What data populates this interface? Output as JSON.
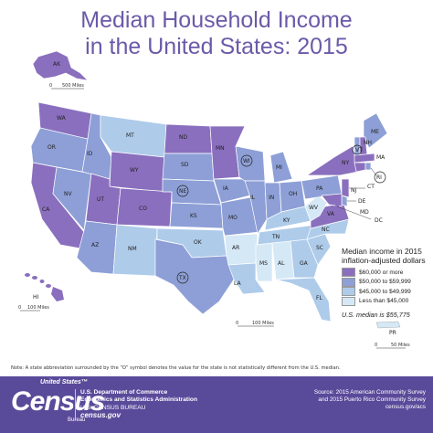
{
  "title": {
    "line1": "Median Household Income",
    "line2": "in the United States: 2015"
  },
  "legend": {
    "title_line1": "Median income in 2015",
    "title_line2": "inflation-adjusted dollars",
    "items": [
      {
        "label": "$60,000 or more",
        "color": "#8a6fbe"
      },
      {
        "label": "$50,000 to $59,999",
        "color": "#8d9fd6"
      },
      {
        "label": "$45,000 to $49,999",
        "color": "#aecbea"
      },
      {
        "label": "Less than $45,000",
        "color": "#d5e8f5"
      }
    ],
    "median": "U.S. median is $55,775"
  },
  "colors": {
    "tier1": "#8a6fbe",
    "tier2": "#8d9fd6",
    "tier3": "#aecbea",
    "tier4": "#d5e8f5",
    "footer": "#5a4a9a",
    "title": "#6b5aa8"
  },
  "states": {
    "AK": "AK",
    "HI": "HI",
    "PR": "PR",
    "WA": "WA",
    "OR": "OR",
    "CA": "CA",
    "NV": "NV",
    "ID": "ID",
    "MT": "MT",
    "WY": "WY",
    "UT": "UT",
    "AZ": "AZ",
    "CO": "CO",
    "NM": "NM",
    "ND": "ND",
    "SD": "SD",
    "NE": "NE",
    "KS": "KS",
    "OK": "OK",
    "TX": "TX",
    "MN": "MN",
    "IA": "IA",
    "MO": "MO",
    "AR": "AR",
    "LA": "LA",
    "WI": "WI",
    "IL": "IL",
    "MI": "MI",
    "IN": "IN",
    "OH": "OH",
    "KY": "KY",
    "TN": "TN",
    "MS": "MS",
    "AL": "AL",
    "GA": "GA",
    "FL": "FL",
    "SC": "SC",
    "NC": "NC",
    "VA": "VA",
    "WV": "WV",
    "PA": "PA",
    "NY": "NY",
    "ME": "ME",
    "VT": "VT",
    "NH": "NH",
    "MA": "MA",
    "RI": "RI",
    "CT": "CT",
    "NJ": "NJ",
    "DE": "DE",
    "MD": "MD",
    "DC": "DC"
  },
  "scales": {
    "alaska": {
      "zero": "0",
      "distance": "500 Miles"
    },
    "hawaii": {
      "zero": "0",
      "distance": "100 Miles"
    },
    "conus": {
      "zero": "0",
      "distance": "100 Miles"
    },
    "pr": {
      "zero": "0",
      "distance": "50 Miles"
    }
  },
  "note": "Note: A state abbreviation surrounded by the “O” symbol denotes the value for the state is not statistically different from the U.S. median.",
  "footer": {
    "logo_small": "United States™",
    "logo_big": "Census",
    "logo_bureau": "Bureau",
    "dept_line1": "U.S. Department of Commerce",
    "dept_line2": "Economics and Statistics Administration",
    "dept_line3": "U.S. CENSUS BUREAU",
    "dept_line4": "census.gov",
    "source_line1": "Source: 2015 American Community Survey",
    "source_line2": "and 2015 Puerto Rico Community Survey",
    "source_line3": "census.gov/acs"
  }
}
